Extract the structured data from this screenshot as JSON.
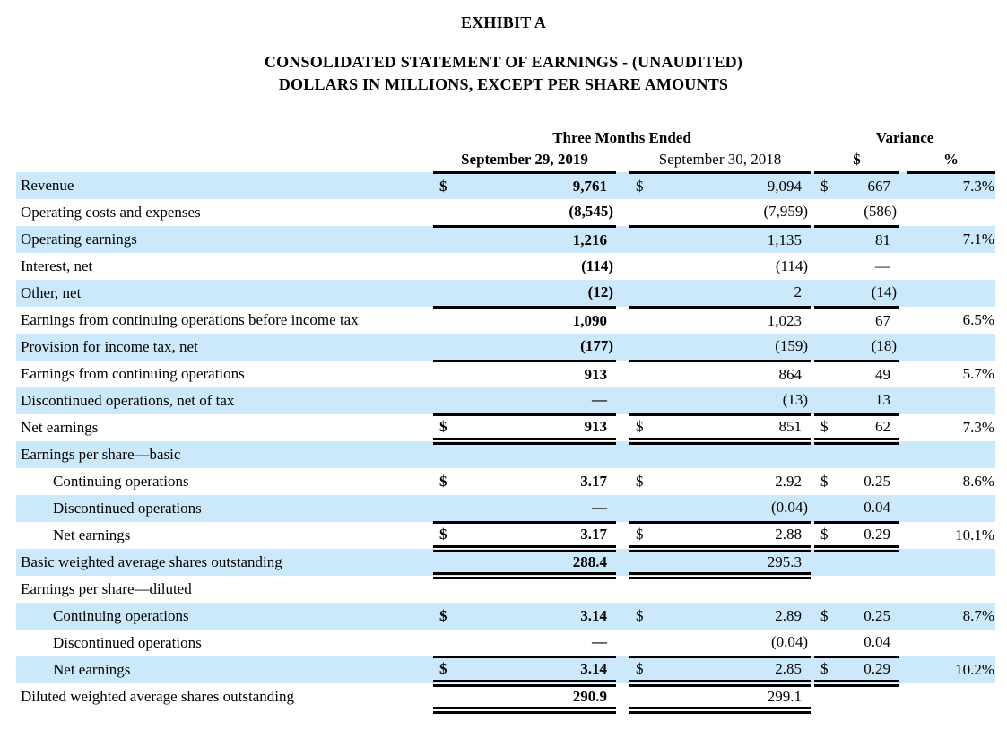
{
  "page": {
    "title": "EXHIBIT A",
    "subtitle_line1": "CONSOLIDATED STATEMENT OF EARNINGS - (UNAUDITED)",
    "subtitle_line2": "DOLLARS IN MILLIONS, EXCEPT PER SHARE AMOUNTS"
  },
  "colors": {
    "row_shade": "#cbe9fa",
    "text": "#000000",
    "rule": "#000000"
  },
  "table": {
    "group_headers": [
      "Three Months Ended",
      "Variance"
    ],
    "col_headers": [
      "September 29, 2019",
      "September 30, 2018",
      "$",
      "%"
    ],
    "currency_symbol": "$",
    "rows": [
      {
        "label": "Revenue",
        "indent": false,
        "dollar": true,
        "v2019": "9,761",
        "v2018": "9,094",
        "variance": "667",
        "pct": "7.3%",
        "rule": "none",
        "rule_var": true,
        "shaded": true
      },
      {
        "label": "Operating costs and expenses",
        "indent": false,
        "dollar": false,
        "v2019": "(8,545)",
        "v2018": "(7,959)",
        "variance": "(586)",
        "pct": "",
        "rule": "single",
        "rule_var": true,
        "shaded": false
      },
      {
        "label": "Operating earnings",
        "indent": false,
        "dollar": false,
        "v2019": "1,216",
        "v2018": "1,135",
        "variance": "81",
        "pct": "7.1%",
        "rule": "none",
        "rule_var": true,
        "shaded": true
      },
      {
        "label": "Interest, net",
        "indent": false,
        "dollar": false,
        "v2019": "(114)",
        "v2018": "(114)",
        "variance": "—",
        "pct": "",
        "rule": "none",
        "rule_var": true,
        "shaded": false
      },
      {
        "label": "Other, net",
        "indent": false,
        "dollar": false,
        "v2019": "(12)",
        "v2018": "2",
        "variance": "(14)",
        "pct": "",
        "rule": "single",
        "rule_var": true,
        "shaded": true
      },
      {
        "label": "Earnings from continuing operations before income tax",
        "indent": false,
        "dollar": false,
        "v2019": "1,090",
        "v2018": "1,023",
        "variance": "67",
        "pct": "6.5%",
        "rule": "none",
        "rule_var": true,
        "shaded": false
      },
      {
        "label": "Provision for income tax, net",
        "indent": false,
        "dollar": false,
        "v2019": "(177)",
        "v2018": "(159)",
        "variance": "(18)",
        "pct": "",
        "rule": "single",
        "rule_var": true,
        "shaded": true
      },
      {
        "label": "Earnings from continuing operations",
        "indent": false,
        "dollar": false,
        "v2019": "913",
        "v2018": "864",
        "variance": "49",
        "pct": "5.7%",
        "rule": "none",
        "rule_var": true,
        "shaded": false
      },
      {
        "label": "Discontinued operations, net of tax",
        "indent": false,
        "dollar": false,
        "v2019": "—",
        "v2018": "(13)",
        "variance": "13",
        "pct": "",
        "rule": "single",
        "rule_var": true,
        "shaded": true
      },
      {
        "label": "Net earnings",
        "indent": false,
        "dollar": true,
        "v2019": "913",
        "v2018": "851",
        "variance": "62",
        "pct": "7.3%",
        "rule": "double",
        "rule_var": true,
        "shaded": false
      },
      {
        "label": "Earnings per share—basic",
        "indent": false,
        "dollar": false,
        "v2019": "",
        "v2018": "",
        "variance": "",
        "pct": "",
        "rule": "none",
        "rule_var": true,
        "shaded": true
      },
      {
        "label": "Continuing operations",
        "indent": true,
        "dollar": true,
        "v2019": "3.17",
        "v2018": "2.92",
        "variance": "0.25",
        "pct": "8.6%",
        "rule": "none",
        "rule_var": true,
        "shaded": false
      },
      {
        "label": "Discontinued operations",
        "indent": true,
        "dollar": false,
        "v2019": "—",
        "v2018": "(0.04)",
        "variance": "0.04",
        "pct": "",
        "rule": "single",
        "rule_var": true,
        "shaded": true
      },
      {
        "label": "Net earnings",
        "indent": true,
        "dollar": true,
        "v2019": "3.17",
        "v2018": "2.88",
        "variance": "0.29",
        "pct": "10.1%",
        "rule": "double",
        "rule_var": true,
        "shaded": false
      },
      {
        "label": "Basic weighted average shares outstanding",
        "indent": false,
        "dollar": false,
        "v2019": "288.4",
        "v2018": "295.3",
        "variance": "",
        "pct": "",
        "rule": "double",
        "rule_var": false,
        "shaded": true
      },
      {
        "label": "Earnings per share—diluted",
        "indent": false,
        "dollar": false,
        "v2019": "",
        "v2018": "",
        "variance": "",
        "pct": "",
        "rule": "none",
        "rule_var": true,
        "shaded": false
      },
      {
        "label": "Continuing operations",
        "indent": true,
        "dollar": true,
        "v2019": "3.14",
        "v2018": "2.89",
        "variance": "0.25",
        "pct": "8.7%",
        "rule": "none",
        "rule_var": true,
        "shaded": true
      },
      {
        "label": "Discontinued operations",
        "indent": true,
        "dollar": false,
        "v2019": "—",
        "v2018": "(0.04)",
        "variance": "0.04",
        "pct": "",
        "rule": "single",
        "rule_var": true,
        "shaded": false
      },
      {
        "label": "Net earnings",
        "indent": true,
        "dollar": true,
        "v2019": "3.14",
        "v2018": "2.85",
        "variance": "0.29",
        "pct": "10.2%",
        "rule": "double",
        "rule_var": true,
        "shaded": true
      },
      {
        "label": "Diluted weighted average shares outstanding",
        "indent": false,
        "dollar": false,
        "v2019": "290.9",
        "v2018": "299.1",
        "variance": "",
        "pct": "",
        "rule": "double",
        "rule_var": false,
        "shaded": false
      }
    ]
  }
}
